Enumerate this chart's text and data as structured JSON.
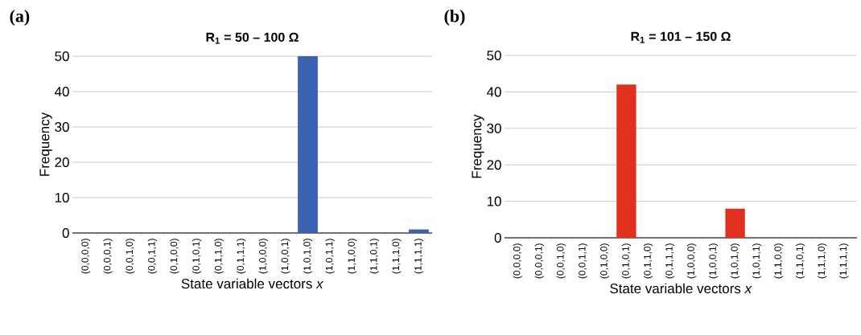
{
  "chart_data": [
    {
      "type": "bar",
      "title": "R$_{1}$ = 50 – 100 Ω",
      "xlabel": "State variable vectors *x*",
      "ylabel": "Frequency",
      "annotations": [
        "(a)"
      ],
      "categories": [
        "(0,0,0,0)",
        "(0,0,0,1)",
        "(0,0,1,0)",
        "(0,0,1,1)",
        "(0,1,0,0)",
        "(0,1,0,1)",
        "(0,1,1,0)",
        "(0,1,1,1)",
        "(1,0,0,0)",
        "(1,0,0,1)",
        "(1,0,1,0)",
        "(1,0,1,1)",
        "(1,1,0,0)",
        "(1,1,0,1)",
        "(1,1,1,0)",
        "(1,1,1,1)"
      ],
      "values": [
        0,
        0,
        0,
        0,
        0,
        0,
        0,
        0,
        0,
        0,
        50,
        0,
        0,
        0,
        0,
        1
      ],
      "color": "#3a62b0",
      "ylim": [
        0,
        50
      ],
      "yticks": [
        0,
        10,
        20,
        30,
        40,
        50
      ],
      "grid": "y"
    },
    {
      "type": "bar",
      "title": "R$_{1}$ = 101 – 150 Ω",
      "xlabel": "State variable vectors *x*",
      "ylabel": "Frequency",
      "annotations": [
        "(b)"
      ],
      "categories": [
        "(0,0,0,0)",
        "(0,0,0,1)",
        "(0,0,1,0)",
        "(0,0,1,1)",
        "(0,1,0,0)",
        "(0,1,0,1)",
        "(0,1,1,0)",
        "(0,1,1,1)",
        "(1,0,0,0)",
        "(1,0,0,1)",
        "(1,0,1,0)",
        "(1,0,1,1)",
        "(1,1,0,0)",
        "(1,1,0,1)",
        "(1,1,1,0)",
        "(1,1,1,1)"
      ],
      "values": [
        0,
        0,
        0,
        0,
        0,
        42,
        0,
        0,
        0,
        0,
        8,
        0,
        0,
        0,
        0,
        0
      ],
      "color": "#e0301e",
      "ylim": [
        0,
        50
      ],
      "yticks": [
        0,
        10,
        20,
        30,
        40,
        50
      ],
      "grid": "y"
    }
  ]
}
